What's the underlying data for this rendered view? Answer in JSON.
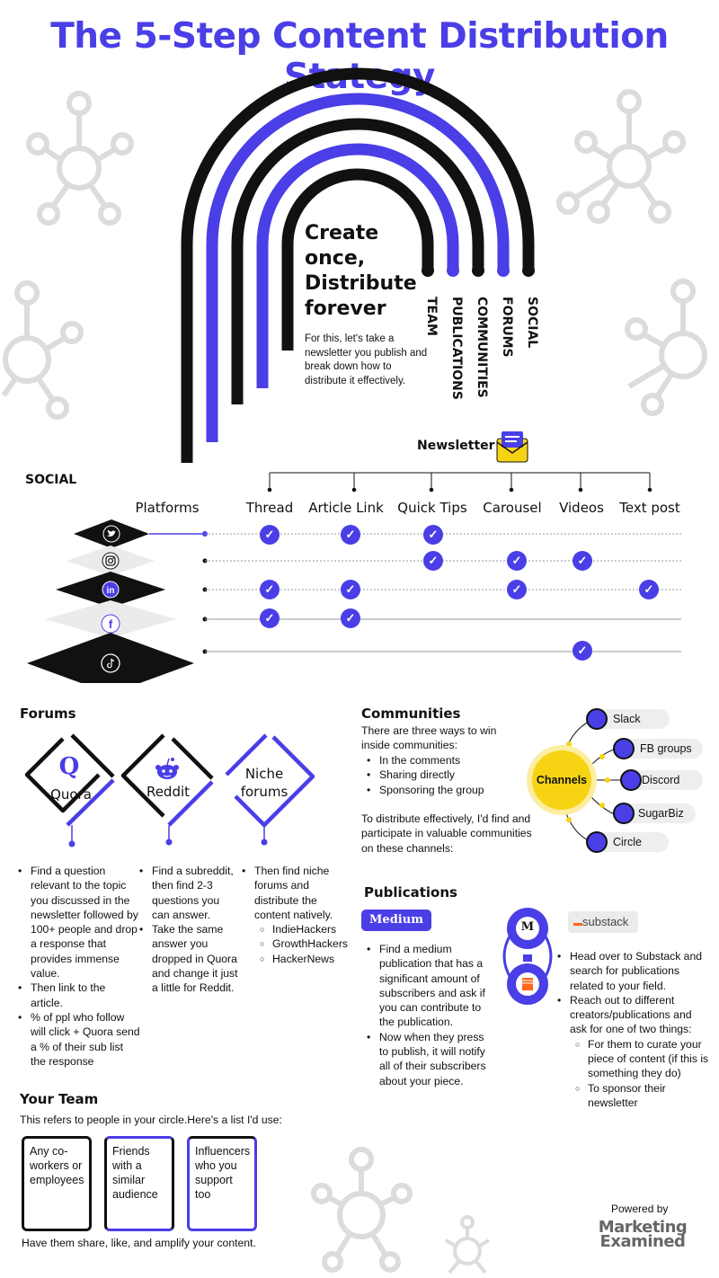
{
  "title": "The 5-Step Content Distribution Stategy",
  "hero": {
    "headline_lines": [
      "Create",
      "once,",
      "Distribute",
      "forever"
    ],
    "intro": "For this, let's take a newsletter you publish and break down how to distribute it effectively.",
    "steps": [
      "TEAM",
      "PUBLICATIONS",
      "COMMUNITIES",
      "FORUMS",
      "SOCIAL"
    ],
    "newsletter_label": "Newsletter"
  },
  "social": {
    "section_label": "SOCIAL",
    "platforms_label": "Platforms",
    "columns": [
      "Thread",
      "Article Link",
      "Quick Tips",
      "Carousel",
      "Videos",
      "Text post"
    ],
    "check_glyph": "✓",
    "rows": [
      {
        "platform": "Twitter",
        "icon": "twitter-bird-icon",
        "checks": [
          true,
          true,
          true,
          false,
          false,
          false
        ]
      },
      {
        "platform": "Instagram",
        "icon": "instagram-icon",
        "checks": [
          false,
          false,
          true,
          true,
          true,
          false
        ]
      },
      {
        "platform": "LinkedIn",
        "icon": "linkedin-icon",
        "checks": [
          true,
          true,
          false,
          true,
          false,
          true
        ]
      },
      {
        "platform": "Facebook",
        "icon": "facebook-icon",
        "checks": [
          true,
          true,
          false,
          false,
          false,
          false
        ]
      },
      {
        "platform": "TikTok",
        "icon": "tiktok-icon",
        "checks": [
          false,
          false,
          false,
          false,
          true,
          false
        ]
      }
    ]
  },
  "forums": {
    "heading": "Forums",
    "items": [
      {
        "label": "Quora",
        "glyph": "Q"
      },
      {
        "label": "Reddit",
        "glyph": ""
      },
      {
        "label_lines": [
          "Niche",
          "forums"
        ]
      }
    ],
    "col1": [
      "Find a question relevant to the topic you discussed in the newsletter followed by 100+ people and drop a response that provides immense value.",
      "Then link to the article.",
      "% of ppl who follow will click + Quora send a % of their sub list the response"
    ],
    "col2": [
      "Find a subreddit, then find 2-3 questions you can answer.",
      "Take the same answer you dropped in Quora and change it just a little for Reddit."
    ],
    "col3_text": "Then find niche forums and distribute the content natively.",
    "col3_sub": [
      "IndieHackers",
      "GrowthHackers",
      "HackerNews"
    ]
  },
  "communities": {
    "heading": "Communities",
    "intro": "There are three ways to win inside communities:",
    "ways": [
      "In the comments",
      "Sharing directly",
      "Sponsoring the group"
    ],
    "outro": "To distribute effectively, I'd find and participate in valuable communities on these channels:",
    "hub": "Channels",
    "channels": [
      "Slack",
      "FB groups",
      "Discord",
      "SugarBiz",
      "Circle"
    ]
  },
  "publications": {
    "heading": "Publications",
    "medium_badge": "Medium",
    "medium_points": [
      "Find a medium publication that has a significant amount of subscribers and ask if you can contribute to the publication.",
      "Now when they press to publish, it will notify all of their subscribers about your piece."
    ],
    "substack_badge": "substack",
    "medium_logo_letter": "M",
    "substack_points": [
      "Head over to Substack and search for publications related to your field.",
      "Reach out to different creators/publications and ask for one of two things:"
    ],
    "substack_sub": [
      "For them to curate your piece of content (if this is something they do)",
      "To sponsor their newsletter"
    ]
  },
  "team": {
    "heading": "Your Team",
    "intro": "This refers to people in your circle.Here's a list I'd use:",
    "boxes": [
      "Any co-workers or employees",
      "Friends with a similar audience",
      "Influencers who you support too"
    ],
    "outro": "Have them share, like, and amplify your content."
  },
  "footer": {
    "powered_by": "Powered by",
    "brand_line1": "Marketing",
    "brand_line2": "Examined"
  },
  "colors": {
    "accent": "#4a3ee6",
    "ink": "#111111",
    "hub": "#f6d414",
    "node_decor": "#dcdcdc"
  }
}
